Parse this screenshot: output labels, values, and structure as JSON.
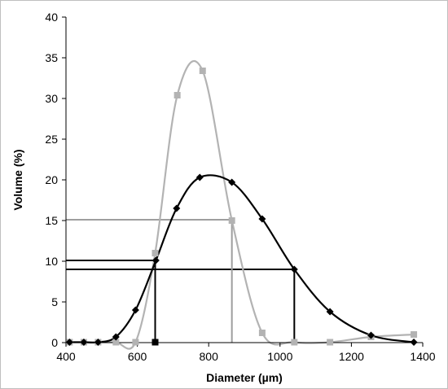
{
  "chart_data": {
    "type": "line",
    "xlabel": "Diameter (µm)",
    "ylabel": "Volume (%)",
    "xlim": [
      400,
      1400
    ],
    "ylim": [
      0,
      40
    ],
    "x_ticks": [
      400,
      600,
      800,
      1000,
      1200,
      1400
    ],
    "y_ticks": [
      0,
      5,
      10,
      15,
      20,
      25,
      30,
      35,
      40
    ],
    "grid": false,
    "legend": "none",
    "series": [
      {
        "color": "#000000",
        "marker": "diamond",
        "smooth": true,
        "points": [
          [
            410,
            0.05
          ],
          [
            450,
            0.05
          ],
          [
            490,
            0.05
          ],
          [
            540,
            0.7
          ],
          [
            595,
            4.0
          ],
          [
            652,
            10.1
          ],
          [
            710,
            16.5
          ],
          [
            775,
            20.3
          ],
          [
            865,
            19.7
          ],
          [
            950,
            15.2
          ],
          [
            1040,
            9.0
          ],
          [
            1140,
            3.8
          ],
          [
            1255,
            0.9
          ],
          [
            1375,
            0.05
          ]
        ]
      },
      {
        "color": "#b3b3b3",
        "marker": "square",
        "smooth": true,
        "points": [
          [
            410,
            0.05
          ],
          [
            450,
            0.05
          ],
          [
            490,
            0.05
          ],
          [
            540,
            0.05
          ],
          [
            595,
            0.05
          ],
          [
            650,
            11.0
          ],
          [
            712,
            30.4
          ],
          [
            783,
            33.4
          ],
          [
            865,
            15.0
          ],
          [
            950,
            1.2
          ],
          [
            1040,
            0.05
          ],
          [
            1140,
            0.05
          ],
          [
            1255,
            0.7
          ],
          [
            1375,
            1.0
          ]
        ]
      }
    ],
    "reference_lines": [
      {
        "color": "#000000",
        "x": 650,
        "y": 10.1
      },
      {
        "color": "#000000",
        "x": 1040,
        "y": 9.0
      },
      {
        "color": "#9e9e9e",
        "x": 865,
        "y": 15.1
      }
    ],
    "extra_markers": [
      {
        "color": "#000000",
        "shape": "square",
        "x": 650,
        "y": 0.05
      }
    ]
  }
}
